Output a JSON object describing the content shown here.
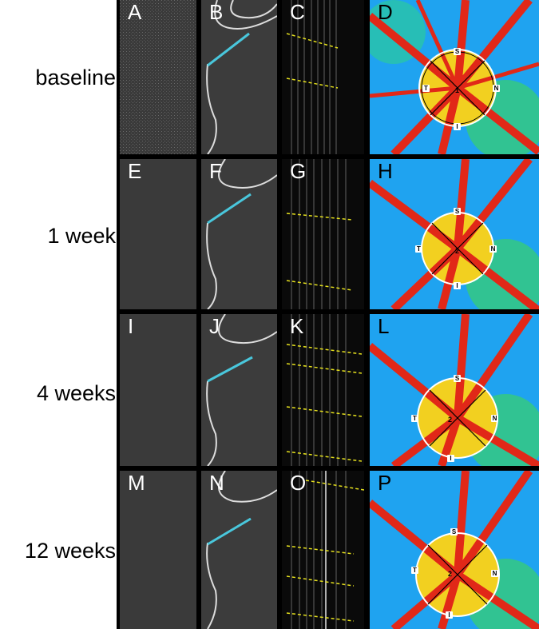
{
  "rows": [
    {
      "label": "baseline",
      "panels": [
        "A",
        "B",
        "C",
        "D"
      ],
      "grid_center": "1"
    },
    {
      "label": "1 week",
      "panels": [
        "E",
        "F",
        "G",
        "H"
      ],
      "grid_center": "2"
    },
    {
      "label": "4 weeks",
      "panels": [
        "I",
        "J",
        "K",
        "L"
      ],
      "grid_center": "2"
    },
    {
      "label": "12 weeks",
      "panels": [
        "M",
        "N",
        "O",
        "P"
      ],
      "grid_center": "2"
    }
  ],
  "grid_labels": {
    "superior": "S",
    "inferior": "I",
    "temporal": "T",
    "nasal": "N"
  }
}
